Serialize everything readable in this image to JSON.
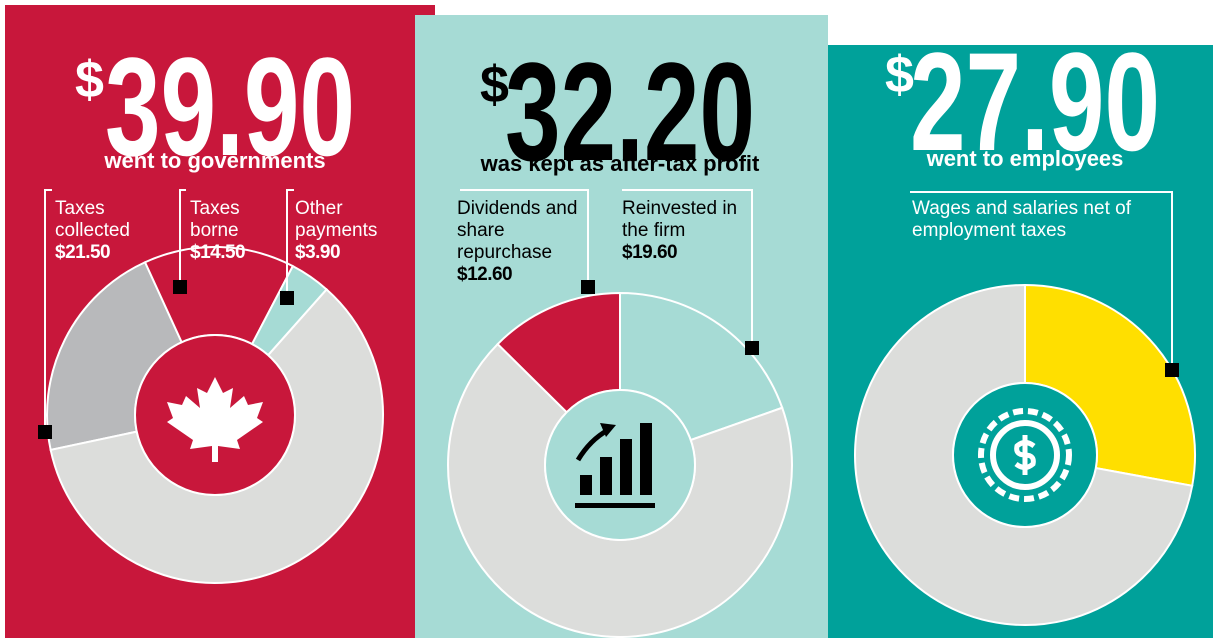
{
  "chart_data": [
    {
      "type": "donut",
      "currency": "$",
      "value": 39.9,
      "value_label": "39.90",
      "subtitle": "went to governments",
      "background": "#c8173b",
      "text_color": "#ffffff",
      "hole_color": "#c8173b",
      "base_color": "#dcdddb",
      "series": [
        {
          "name": "Taxes collected",
          "value": 21.5,
          "value_label": "$21.50",
          "color": "#b8b9bb"
        },
        {
          "name": "Taxes borne",
          "value": 14.5,
          "value_label": "$14.50",
          "color": "#c8173b"
        },
        {
          "name": "Other payments",
          "value": 3.9,
          "value_label": "$3.90",
          "color": "#a6dbd5"
        }
      ]
    },
    {
      "type": "donut",
      "currency": "$",
      "value": 32.2,
      "value_label": "32.20",
      "subtitle": "was kept as after-tax profit",
      "background": "#a6dbd5",
      "text_color": "#000000",
      "hole_color": "#a6dbd5",
      "base_color": "#dcdddb",
      "series": [
        {
          "name": "Dividends and share repurchase",
          "value": 12.6,
          "value_label": "$12.60",
          "color": "#c8173b"
        },
        {
          "name": "Reinvested in the firm",
          "value": 19.6,
          "value_label": "$19.60",
          "color": "#a6dbd5"
        }
      ]
    },
    {
      "type": "donut",
      "currency": "$",
      "value": 27.9,
      "value_label": "27.90",
      "subtitle": "went to employees",
      "background": "#00a19a",
      "text_color": "#ffffff",
      "hole_color": "#00a19a",
      "base_color": "#dcdddb",
      "series": [
        {
          "name": "Wages and salaries net of employment taxes",
          "color": "#ffdf00",
          "value": 27.9
        }
      ]
    }
  ]
}
